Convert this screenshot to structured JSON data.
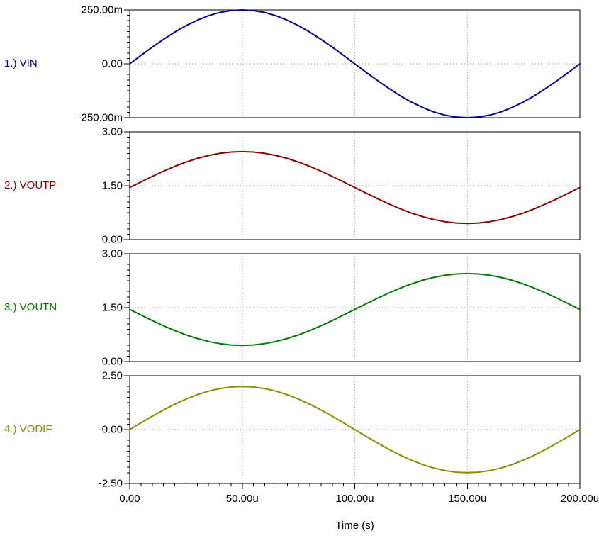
{
  "chart_data": {
    "type": "line",
    "x_label": "Time (s)",
    "xlim_us": [
      0,
      200
    ],
    "x_minor_step_us": 5,
    "grid": "dotted",
    "x_ticks": [
      {
        "v": 0,
        "label": "0.00"
      },
      {
        "v": 50,
        "label": "50.00u"
      },
      {
        "v": 100,
        "label": "100.00u"
      },
      {
        "v": 150,
        "label": "150.00u"
      },
      {
        "v": 200,
        "label": "200.00u"
      }
    ],
    "x_us": [
      0,
      5,
      10,
      15,
      20,
      25,
      30,
      35,
      40,
      45,
      50,
      55,
      60,
      65,
      70,
      75,
      80,
      85,
      90,
      95,
      100,
      105,
      110,
      115,
      120,
      125,
      130,
      135,
      140,
      145,
      150,
      155,
      160,
      165,
      170,
      175,
      180,
      185,
      190,
      195,
      200
    ],
    "panels": [
      {
        "key": "vin",
        "name": "1.) VIN",
        "color": "#00008B",
        "ylim": [
          -0.25,
          0.25
        ],
        "y_ticks": [
          {
            "v": 0.25,
            "label": "250.00m"
          },
          {
            "v": 0,
            "label": "0.00"
          },
          {
            "v": -0.25,
            "label": "-250.00m"
          }
        ],
        "values": [
          0,
          0.039,
          0.077,
          0.113,
          0.147,
          0.177,
          0.202,
          0.223,
          0.238,
          0.247,
          0.25,
          0.247,
          0.238,
          0.223,
          0.202,
          0.177,
          0.147,
          0.113,
          0.077,
          0.039,
          0,
          -0.039,
          -0.077,
          -0.113,
          -0.147,
          -0.177,
          -0.202,
          -0.223,
          -0.238,
          -0.247,
          -0.25,
          -0.247,
          -0.238,
          -0.223,
          -0.202,
          -0.177,
          -0.147,
          -0.113,
          -0.077,
          -0.039,
          0
        ]
      },
      {
        "key": "voutp",
        "name": "2.) VOUTP",
        "color": "#8B0000",
        "ylim": [
          0,
          3
        ],
        "y_ticks": [
          {
            "v": 3,
            "label": "3.00"
          },
          {
            "v": 1.5,
            "label": "1.50"
          },
          {
            "v": 0,
            "label": "0.00"
          }
        ],
        "values": [
          1.45,
          1.606,
          1.759,
          1.904,
          2.038,
          2.157,
          2.259,
          2.341,
          2.401,
          2.438,
          2.45,
          2.438,
          2.401,
          2.341,
          2.259,
          2.157,
          2.038,
          1.904,
          1.759,
          1.606,
          1.45,
          1.294,
          1.141,
          0.996,
          0.862,
          0.743,
          0.641,
          0.559,
          0.499,
          0.462,
          0.45,
          0.462,
          0.499,
          0.559,
          0.641,
          0.743,
          0.862,
          0.996,
          1.141,
          1.294,
          1.45
        ]
      },
      {
        "key": "voutn",
        "name": "3.) VOUTN",
        "color": "#007A00",
        "ylim": [
          0,
          3
        ],
        "y_ticks": [
          {
            "v": 3,
            "label": "3.00"
          },
          {
            "v": 1.5,
            "label": "1.50"
          },
          {
            "v": 0,
            "label": "0.00"
          }
        ],
        "values": [
          1.45,
          1.294,
          1.141,
          0.996,
          0.862,
          0.743,
          0.641,
          0.559,
          0.499,
          0.462,
          0.45,
          0.462,
          0.499,
          0.559,
          0.641,
          0.743,
          0.862,
          0.996,
          1.141,
          1.294,
          1.45,
          1.606,
          1.759,
          1.904,
          2.038,
          2.157,
          2.259,
          2.341,
          2.401,
          2.438,
          2.45,
          2.438,
          2.401,
          2.341,
          2.259,
          2.157,
          2.038,
          1.904,
          1.759,
          1.606,
          1.45
        ]
      },
      {
        "key": "vodif",
        "name": "4.) VODIF",
        "color": "#8B8B00",
        "ylim": [
          -2.5,
          2.5
        ],
        "y_ticks": [
          {
            "v": 2.5,
            "label": "2.50"
          },
          {
            "v": 0,
            "label": "0.00"
          },
          {
            "v": -2.5,
            "label": "-2.50"
          }
        ],
        "values": [
          0,
          0.312,
          0.618,
          0.908,
          1.176,
          1.414,
          1.618,
          1.782,
          1.902,
          1.976,
          2,
          1.976,
          1.902,
          1.782,
          1.618,
          1.414,
          1.176,
          0.908,
          0.618,
          0.312,
          0,
          -0.312,
          -0.618,
          -0.908,
          -1.176,
          -1.414,
          -1.618,
          -1.782,
          -1.902,
          -1.976,
          -2,
          -1.976,
          -1.902,
          -1.782,
          -1.618,
          -1.414,
          -1.176,
          -0.908,
          -0.618,
          -0.312,
          0
        ]
      }
    ]
  }
}
